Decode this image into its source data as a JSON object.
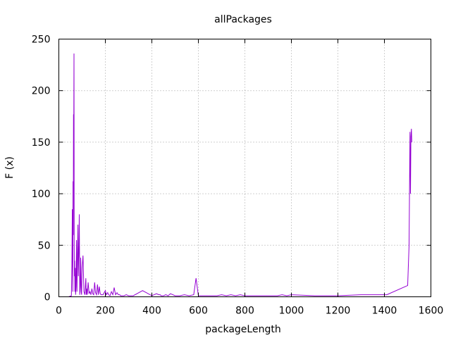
{
  "chart_data": {
    "type": "line",
    "title": "allPackages",
    "xlabel": "packageLength",
    "ylabel": "F (x)",
    "xlim": [
      0,
      1600
    ],
    "ylim": [
      0,
      250
    ],
    "xticks": [
      0,
      200,
      400,
      600,
      800,
      1000,
      1200,
      1400,
      1600
    ],
    "yticks": [
      0,
      50,
      100,
      150,
      200,
      250
    ],
    "xtick_labels": [
      "0",
      "200",
      "400",
      "600",
      "800",
      "1000",
      "1200",
      "1400",
      "1600"
    ],
    "ytick_labels": [
      "0",
      "50",
      "100",
      "150",
      "200",
      "250"
    ],
    "grid": true,
    "series": [
      {
        "color": "#9400d3",
        "x": [
          42,
          54,
          56,
          58,
          60,
          61,
          62,
          63,
          64,
          65,
          66,
          67,
          68,
          69,
          70,
          71,
          72,
          74,
          76,
          78,
          80,
          82,
          84,
          86,
          88,
          90,
          92,
          94,
          96,
          98,
          100,
          104,
          108,
          112,
          116,
          118,
          120,
          122,
          126,
          130,
          134,
          138,
          142,
          146,
          150,
          154,
          158,
          162,
          166,
          170,
          174,
          178,
          182,
          186,
          190,
          200,
          204,
          210,
          214,
          220,
          226,
          232,
          238,
          244,
          250,
          256,
          262,
          266,
          272,
          280,
          290,
          300,
          320,
          360,
          400,
          420,
          430,
          436,
          440,
          450,
          460,
          470,
          480,
          500,
          520,
          540,
          560,
          580,
          590,
          600,
          620,
          640,
          660,
          680,
          700,
          720,
          740,
          760,
          780,
          800,
          900,
          940,
          960,
          980,
          1000,
          1100,
          1200,
          1300,
          1360,
          1400,
          1410,
          1500,
          1506,
          1510,
          1512,
          1514,
          1516,
          1518
        ],
        "y": [
          0,
          1,
          30,
          85,
          5,
          112,
          60,
          177,
          140,
          236,
          50,
          20,
          35,
          5,
          15,
          28,
          2,
          10,
          55,
          5,
          40,
          70,
          20,
          45,
          80,
          2,
          10,
          38,
          5,
          2,
          28,
          40,
          5,
          2,
          18,
          2,
          8,
          2,
          14,
          3,
          5,
          2,
          8,
          3,
          2,
          14,
          4,
          2,
          12,
          2,
          10,
          3,
          2,
          2,
          2,
          6,
          2,
          4,
          2,
          1,
          5,
          2,
          9,
          2,
          4,
          2,
          2,
          1,
          1,
          1,
          2,
          1,
          1,
          6,
          1,
          3,
          2,
          2,
          1,
          1,
          2,
          1,
          3,
          1,
          1,
          2,
          1,
          2,
          18,
          1,
          1,
          1,
          1,
          1,
          2,
          1,
          2,
          1,
          2,
          1,
          1,
          1,
          2,
          1,
          2,
          1,
          1,
          2,
          2,
          2,
          2,
          11,
          50,
          160,
          100,
          155,
          163,
          150
        ]
      }
    ]
  }
}
